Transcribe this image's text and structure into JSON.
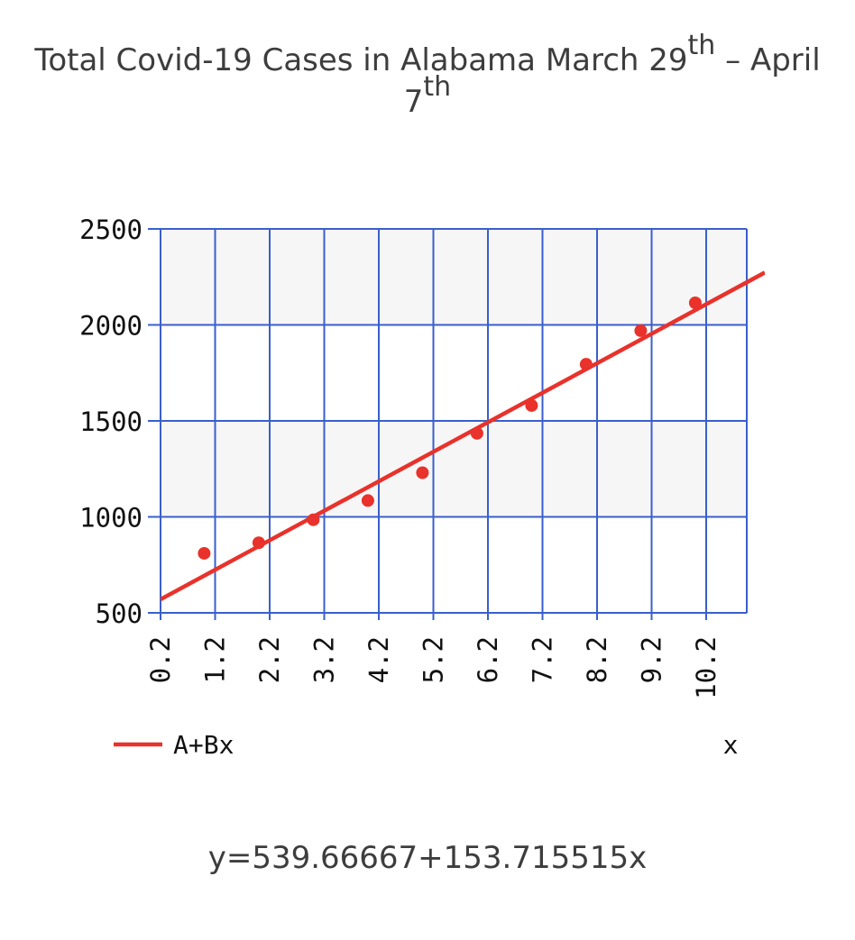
{
  "chart_data": {
    "type": "scatter",
    "title": {
      "part1": "Total Covid-19 Cases in Alabama March 29",
      "sup1": "th",
      "part2": " – April",
      "part3": "7",
      "sup2": "th"
    },
    "xlabel": "x",
    "ylabel": "",
    "xlim": [
      0.2,
      11.0
    ],
    "ylim": [
      500,
      2500
    ],
    "x_ticks": [
      "0.2",
      "1.2",
      "2.2",
      "3.2",
      "4.2",
      "5.2",
      "6.2",
      "7.2",
      "8.2",
      "9.2",
      "10.2"
    ],
    "y_ticks": [
      "2500",
      "2000",
      "1500",
      "1000",
      "500"
    ],
    "grid": true,
    "legend_position": "bottom-left",
    "series": [
      {
        "name": "",
        "kind": "points",
        "color": "#e8322b",
        "x": [
          1,
          2,
          3,
          4,
          5,
          6,
          7,
          8,
          9,
          10
        ],
        "y": [
          810,
          865,
          985,
          1085,
          1230,
          1435,
          1580,
          1795,
          1970,
          2115
        ]
      },
      {
        "name": "A+Bx",
        "kind": "fit-line",
        "color": "#e8322b",
        "intercept": 539.66667,
        "slope": 153.715515
      }
    ],
    "equation": "y=539.66667+153.715515x"
  },
  "colors": {
    "grid": "#3a5fcd",
    "plot_band": "#f6f6f6",
    "series": "#e8322b"
  }
}
